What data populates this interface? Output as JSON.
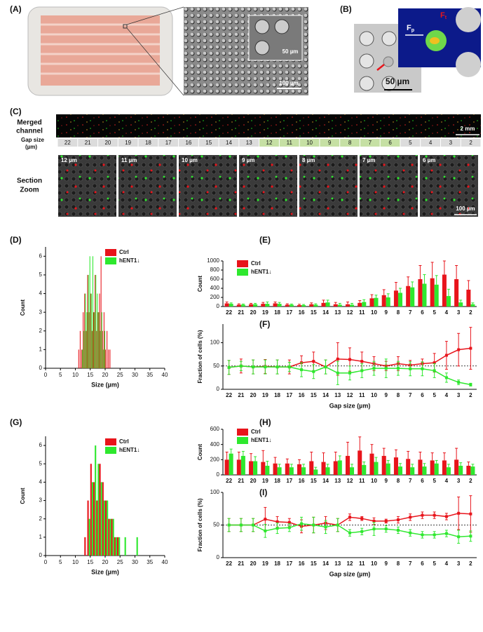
{
  "panel_a": {
    "label": "(A)",
    "inset_scale": "50 µm",
    "scale": "100 µm"
  },
  "panel_b": {
    "label": "(B)",
    "fp": "F",
    "fp_sub": "p",
    "ft": "F",
    "ft_sub": "t",
    "scale": "50 µm"
  },
  "panel_c": {
    "label": "(C)",
    "merged": [
      "Merged",
      "channel"
    ],
    "scale": "2 mm",
    "gap_title": [
      "Gap size",
      "(µm)"
    ],
    "gaps": [
      "22",
      "21",
      "20",
      "19",
      "18",
      "17",
      "16",
      "15",
      "14",
      "13",
      "12",
      "11",
      "10",
      "9",
      "8",
      "7",
      "6",
      "5",
      "4",
      "3",
      "2"
    ],
    "highlighted": [
      false,
      false,
      false,
      false,
      false,
      false,
      false,
      false,
      false,
      false,
      true,
      true,
      true,
      true,
      true,
      true,
      true,
      false,
      false,
      false,
      false
    ],
    "highlight_color": "#c6e0a4",
    "zoom_title": [
      "Section",
      "Zoom"
    ],
    "zoom_labels": [
      "12 µm",
      "11 µm",
      "10 µm",
      "9 µm",
      "8 µm",
      "7 µm",
      "6 µm"
    ],
    "zoom_scale": "100 µm"
  },
  "chart_data": [
    {
      "type": "histogram",
      "panel": "(D)",
      "xlabel": "Size (µm)",
      "ylabel": "Count",
      "bins": [
        11,
        11.5,
        12,
        12.5,
        13,
        13.5,
        14,
        14.5,
        15,
        15.5,
        16,
        16.5,
        17,
        17.5,
        18,
        18.5,
        19,
        19.5,
        20,
        20.5,
        21,
        21.5,
        22
      ],
      "series": [
        {
          "name": "Ctrl",
          "color": "#e8141b",
          "values": [
            1,
            2,
            1,
            3,
            4,
            2,
            5,
            3,
            4,
            2,
            3,
            5,
            2,
            3,
            4,
            6,
            2,
            3,
            1,
            2,
            1,
            1
          ]
        },
        {
          "name": "hENT1↓",
          "color": "#2ee82e",
          "values": [
            0,
            0,
            1,
            2,
            4,
            3,
            5,
            6,
            4,
            6,
            3,
            5,
            4,
            3,
            2,
            3,
            1,
            2,
            0,
            0,
            0,
            0
          ]
        }
      ],
      "xlim": [
        0,
        40
      ],
      "xticks": [
        0,
        5,
        10,
        15,
        20,
        25,
        30,
        35,
        40
      ],
      "ylim": [
        0,
        6.5
      ],
      "yticks": [
        0,
        1,
        2,
        3,
        4,
        5,
        6
      ],
      "legend": "upper right"
    },
    {
      "type": "bar",
      "panel": "(E)",
      "ylabel": "Count",
      "categories": [
        "22",
        "21",
        "20",
        "19",
        "18",
        "17",
        "16",
        "15",
        "14",
        "13",
        "12",
        "11",
        "10",
        "9",
        "8",
        "7",
        "6",
        "5",
        "4",
        "3",
        "2"
      ],
      "series": [
        {
          "name": "Ctrl",
          "color": "#e8141b",
          "values": [
            70,
            40,
            50,
            60,
            70,
            40,
            30,
            50,
            80,
            50,
            50,
            80,
            180,
            250,
            350,
            450,
            600,
            620,
            700,
            600,
            370
          ],
          "errors": [
            30,
            20,
            20,
            30,
            30,
            20,
            20,
            30,
            60,
            40,
            50,
            50,
            80,
            120,
            180,
            200,
            300,
            350,
            300,
            300,
            200
          ]
        },
        {
          "name": "hENT1↓",
          "color": "#2ee82e",
          "values": [
            60,
            40,
            50,
            60,
            60,
            40,
            30,
            40,
            90,
            40,
            40,
            100,
            190,
            200,
            300,
            420,
            500,
            480,
            230,
            90,
            50
          ],
          "errors": [
            20,
            15,
            20,
            40,
            30,
            15,
            15,
            20,
            50,
            30,
            30,
            50,
            60,
            80,
            100,
            120,
            200,
            200,
            150,
            50,
            30
          ]
        }
      ],
      "ylim": [
        0,
        1000
      ],
      "yticks": [
        0,
        200,
        400,
        600,
        800,
        1000
      ],
      "legend": "upper left"
    },
    {
      "type": "line",
      "panel": "(F)",
      "xlabel": "Gap size  (µm)",
      "ylabel": "Fraction of cells (%)",
      "categories": [
        "22",
        "21",
        "20",
        "19",
        "18",
        "17",
        "16",
        "15",
        "14",
        "13",
        "12",
        "11",
        "10",
        "9",
        "8",
        "7",
        "6",
        "5",
        "4",
        "3",
        "2"
      ],
      "series": [
        {
          "name": "Ctrl",
          "color": "#e8141b",
          "values": [
            47,
            50,
            48,
            49,
            48,
            48,
            57,
            60,
            48,
            65,
            64,
            60,
            55,
            50,
            55,
            52,
            55,
            57,
            73,
            85,
            88
          ],
          "errors": [
            15,
            15,
            15,
            15,
            15,
            15,
            15,
            20,
            15,
            35,
            25,
            20,
            15,
            10,
            15,
            10,
            10,
            20,
            30,
            35,
            45
          ]
        },
        {
          "name": "hENT1↓",
          "color": "#2ee82e",
          "values": [
            47,
            50,
            48,
            48,
            48,
            48,
            42,
            38,
            48,
            35,
            35,
            40,
            45,
            45,
            45,
            44,
            44,
            40,
            25,
            15,
            10
          ],
          "errors": [
            15,
            10,
            15,
            15,
            15,
            10,
            15,
            15,
            15,
            25,
            15,
            15,
            15,
            20,
            15,
            15,
            15,
            15,
            10,
            5,
            3
          ]
        }
      ],
      "ylim": [
        0,
        140
      ],
      "yticks": [
        0,
        50,
        100
      ],
      "reference_line": 50
    },
    {
      "type": "histogram",
      "panel": "(G)",
      "xlabel": "Size (µm)",
      "ylabel": "Count",
      "bins": [
        13,
        14,
        15,
        16,
        17,
        18,
        19,
        20,
        21,
        22,
        23,
        24,
        25,
        26,
        27,
        28,
        29,
        30,
        31
      ],
      "series": [
        {
          "name": "Ctrl",
          "color": "#e8141b",
          "values": [
            1,
            3,
            5,
            4,
            3,
            5,
            4,
            3,
            2,
            2,
            1,
            1,
            0,
            0,
            0,
            0,
            0,
            0
          ]
        },
        {
          "name": "hENT1↓",
          "color": "#2ee82e",
          "values": [
            0,
            2,
            4,
            6,
            5,
            4,
            3,
            3,
            2,
            2,
            1,
            1,
            0,
            1,
            0,
            0,
            0,
            1
          ]
        }
      ],
      "xlim": [
        0,
        40
      ],
      "xticks": [
        0,
        5,
        10,
        15,
        20,
        25,
        30,
        35,
        40
      ],
      "ylim": [
        0,
        6.5
      ],
      "yticks": [
        0,
        1,
        2,
        3,
        4,
        5,
        6
      ],
      "legend": "upper right"
    },
    {
      "type": "bar",
      "panel": "(H)",
      "ylabel": "Count",
      "categories": [
        "22",
        "21",
        "20",
        "19",
        "18",
        "17",
        "16",
        "15",
        "14",
        "13",
        "12",
        "11",
        "10",
        "9",
        "8",
        "7",
        "6",
        "5",
        "4",
        "3",
        "2"
      ],
      "series": [
        {
          "name": "Ctrl",
          "color": "#e8141b",
          "values": [
            200,
            200,
            180,
            170,
            150,
            150,
            140,
            180,
            170,
            180,
            250,
            320,
            280,
            250,
            230,
            210,
            200,
            190,
            190,
            200,
            120
          ],
          "errors": [
            100,
            100,
            100,
            150,
            80,
            60,
            60,
            120,
            120,
            120,
            180,
            180,
            120,
            100,
            100,
            100,
            100,
            100,
            100,
            150,
            50
          ]
        },
        {
          "name": "hENT1↓",
          "color": "#2ee82e",
          "values": [
            280,
            250,
            180,
            120,
            100,
            100,
            100,
            70,
            100,
            190,
            100,
            130,
            170,
            150,
            110,
            100,
            110,
            150,
            100,
            120,
            110
          ],
          "errors": [
            60,
            60,
            60,
            60,
            40,
            40,
            40,
            30,
            40,
            60,
            40,
            40,
            60,
            40,
            40,
            40,
            40,
            40,
            40,
            40,
            30
          ]
        }
      ],
      "ylim": [
        0,
        600
      ],
      "yticks": [
        0,
        200,
        400,
        600
      ],
      "legend": "upper left"
    },
    {
      "type": "line",
      "panel": "(I)",
      "xlabel": "Gap size  (µm)",
      "ylabel": "Fraction of cells (%)",
      "categories": [
        "22",
        "21",
        "20",
        "19",
        "18",
        "17",
        "16",
        "15",
        "14",
        "13",
        "12",
        "11",
        "10",
        "9",
        "8",
        "7",
        "6",
        "5",
        "4",
        "3",
        "2"
      ],
      "series": [
        {
          "name": "Ctrl",
          "color": "#e8141b",
          "values": [
            50,
            50,
            50,
            59,
            55,
            54,
            48,
            50,
            53,
            50,
            62,
            60,
            56,
            56,
            58,
            62,
            65,
            65,
            63,
            68,
            67
          ],
          "errors": [
            10,
            10,
            10,
            18,
            8,
            6,
            10,
            12,
            10,
            10,
            5,
            3,
            5,
            3,
            5,
            5,
            5,
            5,
            5,
            25,
            28
          ]
        },
        {
          "name": "hENT1↓",
          "color": "#2ee82e",
          "values": [
            50,
            50,
            50,
            41,
            45,
            46,
            52,
            50,
            47,
            50,
            38,
            40,
            44,
            44,
            42,
            38,
            35,
            35,
            37,
            32,
            33
          ],
          "errors": [
            10,
            10,
            10,
            10,
            8,
            6,
            10,
            12,
            10,
            10,
            5,
            5,
            10,
            5,
            5,
            5,
            5,
            5,
            5,
            10,
            8
          ]
        }
      ],
      "ylim": [
        0,
        100
      ],
      "yticks": [
        0,
        50,
        100
      ],
      "reference_line": 50
    }
  ]
}
